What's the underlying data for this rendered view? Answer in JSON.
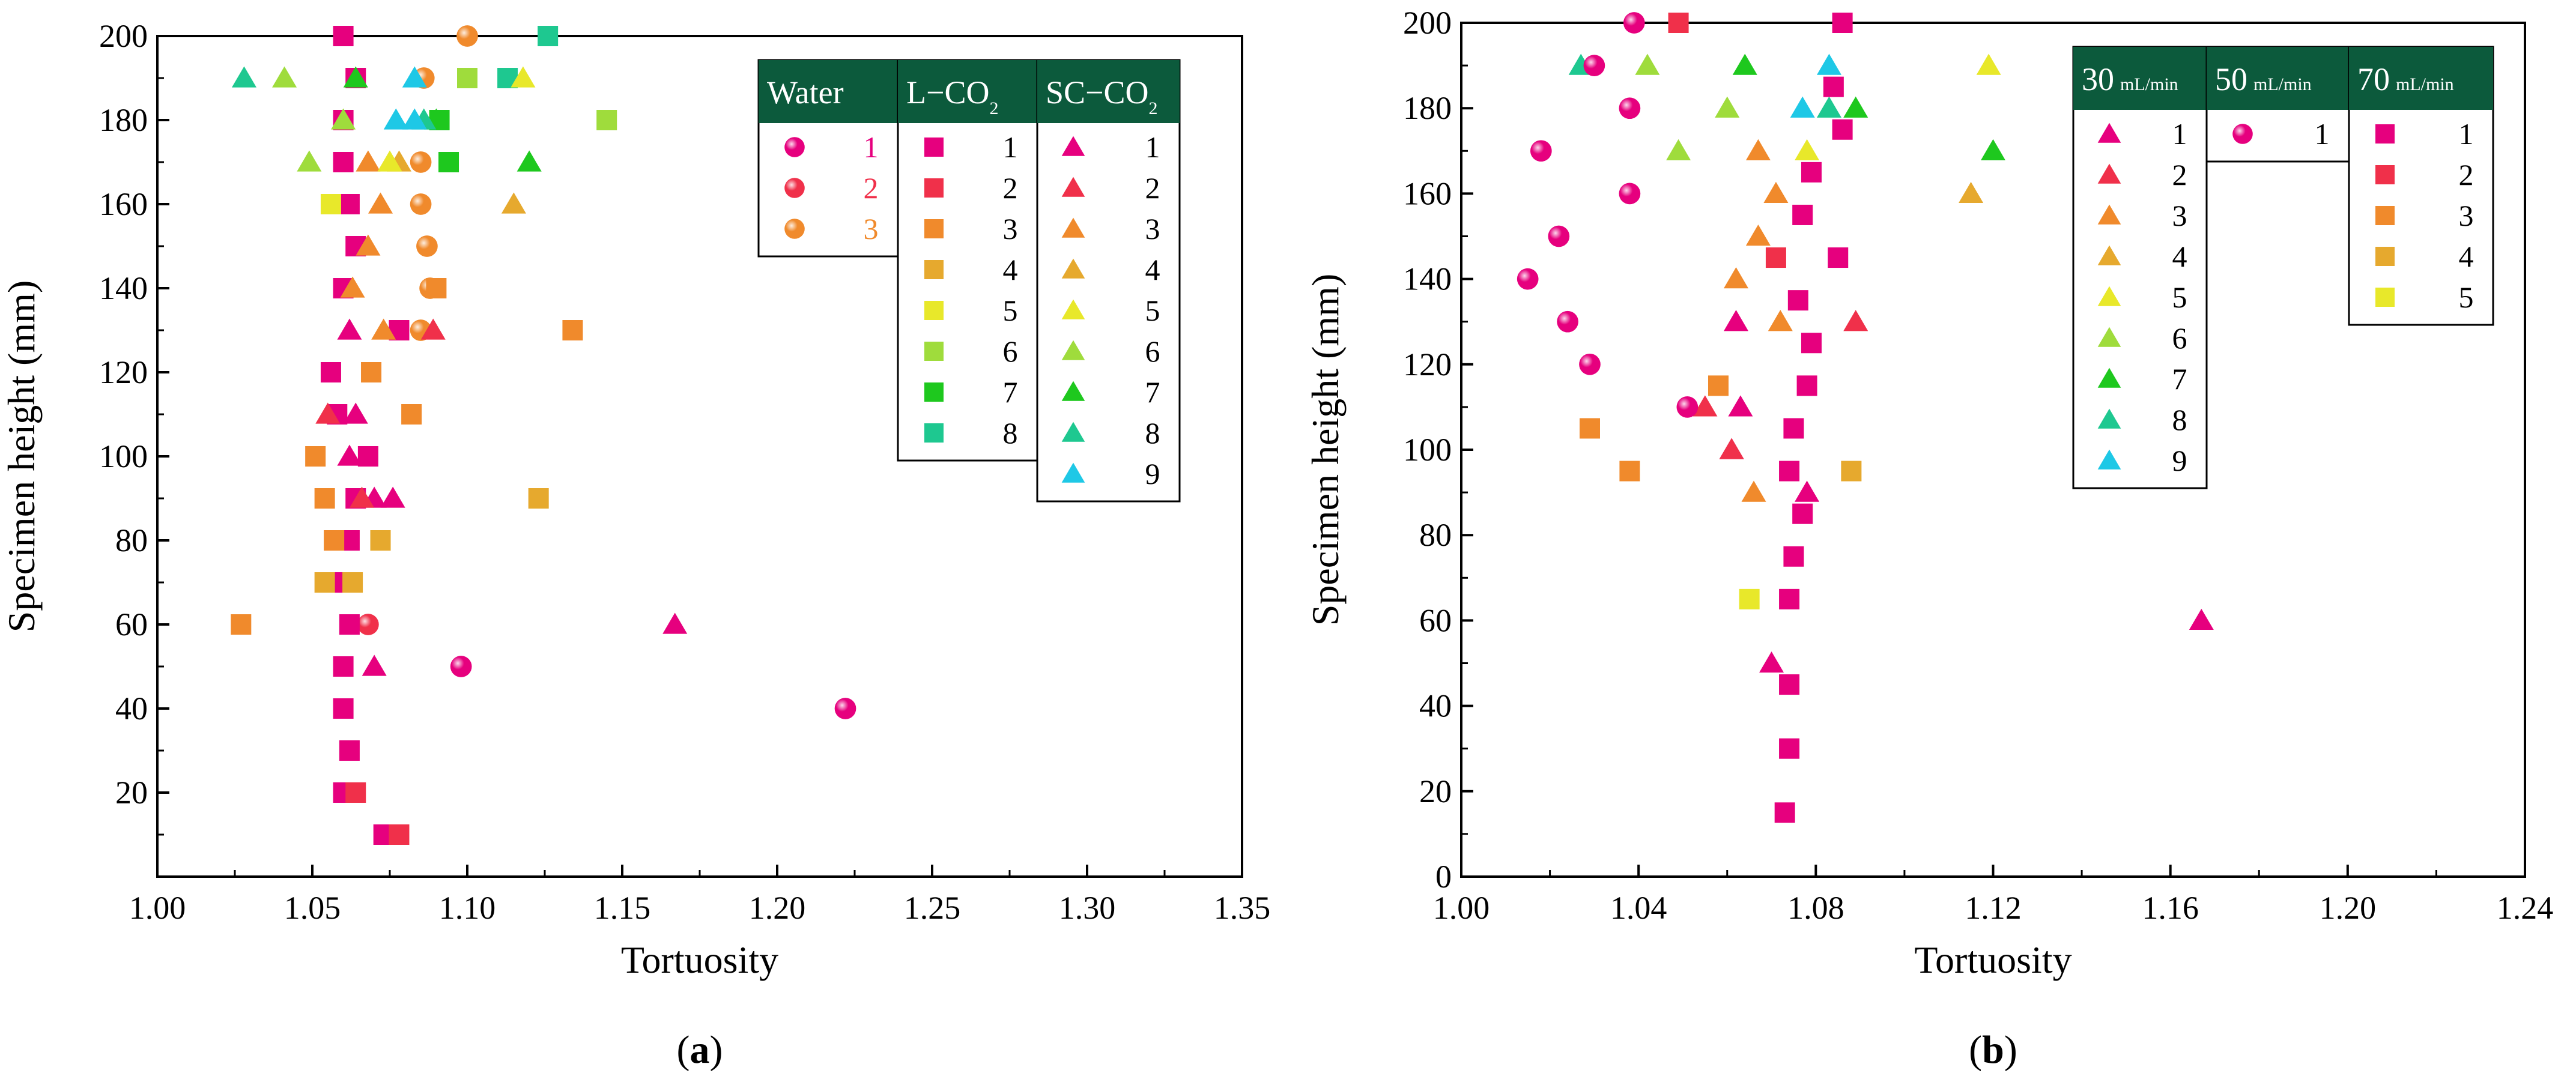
{
  "chart_data": [
    {
      "type": "scatter",
      "panel_label": "a",
      "xlabel": "Tortuosity",
      "ylabel": "Specimen height (mm)",
      "xlim": [
        1.0,
        1.35
      ],
      "ylim": [
        0,
        200
      ],
      "xticks": [
        "1.00",
        "1.05",
        "1.10",
        "1.15",
        "1.20",
        "1.25",
        "1.30",
        "1.35"
      ],
      "yticks": [
        "20",
        "40",
        "60",
        "80",
        "100",
        "120",
        "140",
        "160",
        "180",
        "200"
      ],
      "grid": false,
      "legend_position": "top-right",
      "legend_groups": [
        {
          "header": "Water",
          "header_sub": "",
          "marker": "circle",
          "entries": [
            "1",
            "2",
            "3"
          ],
          "label_colored": true
        },
        {
          "header": "L−CO",
          "header_sub": "2",
          "marker": "square",
          "entries": [
            "1",
            "2",
            "3",
            "4",
            "5",
            "6",
            "7",
            "8"
          ],
          "label_colored": false
        },
        {
          "header": "SC−CO",
          "header_sub": "2",
          "marker": "triangle",
          "entries": [
            "1",
            "2",
            "3",
            "4",
            "5",
            "6",
            "7",
            "8",
            "9"
          ],
          "label_colored": false
        }
      ],
      "series": [
        {
          "group": "Water",
          "entry": 1,
          "marker": "circle",
          "color": "#e6007e",
          "points": [
            [
              1.222,
              40
            ],
            [
              1.098,
              50
            ]
          ]
        },
        {
          "group": "Water",
          "entry": 2,
          "marker": "circle",
          "color": "#f0304a",
          "points": [
            [
              1.068,
              60
            ]
          ]
        },
        {
          "group": "Water",
          "entry": 3,
          "marker": "circle",
          "color": "#f08a2c",
          "points": [
            [
              1.085,
              130
            ],
            [
              1.088,
              140
            ],
            [
              1.087,
              150
            ],
            [
              1.085,
              160
            ],
            [
              1.085,
              170
            ],
            [
              1.086,
              190
            ],
            [
              1.1,
              200
            ]
          ]
        },
        {
          "group": "L−CO2",
          "entry": 1,
          "marker": "square",
          "color": "#e6007e",
          "points": [
            [
              1.073,
              10
            ],
            [
              1.06,
              20
            ],
            [
              1.062,
              30
            ],
            [
              1.06,
              40
            ],
            [
              1.06,
              50
            ],
            [
              1.062,
              60
            ],
            [
              1.06,
              70
            ],
            [
              1.062,
              80
            ],
            [
              1.064,
              90
            ],
            [
              1.068,
              100
            ],
            [
              1.058,
              110
            ],
            [
              1.056,
              120
            ],
            [
              1.078,
              130
            ],
            [
              1.06,
              140
            ],
            [
              1.064,
              150
            ],
            [
              1.062,
              160
            ],
            [
              1.06,
              170
            ],
            [
              1.06,
              180
            ],
            [
              1.064,
              190
            ],
            [
              1.06,
              200
            ]
          ]
        },
        {
          "group": "L−CO2",
          "entry": 2,
          "marker": "square",
          "color": "#f0304a",
          "points": [
            [
              1.078,
              10
            ],
            [
              1.064,
              20
            ]
          ]
        },
        {
          "group": "L−CO2",
          "entry": 3,
          "marker": "square",
          "color": "#f08a2c",
          "points": [
            [
              1.027,
              60
            ],
            [
              1.057,
              80
            ],
            [
              1.054,
              90
            ],
            [
              1.051,
              100
            ],
            [
              1.082,
              110
            ],
            [
              1.069,
              120
            ],
            [
              1.134,
              130
            ],
            [
              1.09,
              140
            ]
          ]
        },
        {
          "group": "L−CO2",
          "entry": 4,
          "marker": "square",
          "color": "#e6a92e",
          "points": [
            [
              1.054,
              70
            ],
            [
              1.063,
              70
            ],
            [
              1.072,
              80
            ],
            [
              1.123,
              90
            ]
          ]
        },
        {
          "group": "L−CO2",
          "entry": 5,
          "marker": "square",
          "color": "#e8e82a",
          "points": [
            [
              1.056,
              160
            ]
          ]
        },
        {
          "group": "L−CO2",
          "entry": 6,
          "marker": "square",
          "color": "#9fdc3c",
          "points": [
            [
              1.145,
              180
            ],
            [
              1.1,
              190
            ]
          ]
        },
        {
          "group": "L−CO2",
          "entry": 7,
          "marker": "square",
          "color": "#1ec81e",
          "points": [
            [
              1.094,
              170
            ],
            [
              1.091,
              180
            ]
          ]
        },
        {
          "group": "L−CO2",
          "entry": 8,
          "marker": "square",
          "color": "#1ec890",
          "points": [
            [
              1.113,
              190
            ],
            [
              1.126,
              200
            ]
          ]
        },
        {
          "group": "SC−CO2",
          "entry": 1,
          "marker": "triangle",
          "color": "#e6007e",
          "points": [
            [
              1.07,
              50
            ],
            [
              1.167,
              60
            ],
            [
              1.076,
              90
            ],
            [
              1.07,
              90
            ],
            [
              1.062,
              100
            ],
            [
              1.064,
              110
            ],
            [
              1.062,
              130
            ]
          ]
        },
        {
          "group": "SC−CO2",
          "entry": 2,
          "marker": "triangle",
          "color": "#f0304a",
          "points": [
            [
              1.066,
              90
            ],
            [
              1.055,
              110
            ],
            [
              1.089,
              130
            ]
          ]
        },
        {
          "group": "SC−CO2",
          "entry": 3,
          "marker": "triangle",
          "color": "#f08a2c",
          "points": [
            [
              1.063,
              140
            ],
            [
              1.068,
              150
            ],
            [
              1.072,
              160
            ],
            [
              1.068,
              170
            ],
            [
              1.073,
              130
            ]
          ]
        },
        {
          "group": "SC−CO2",
          "entry": 4,
          "marker": "triangle",
          "color": "#e6a92e",
          "points": [
            [
              1.115,
              160
            ],
            [
              1.078,
              170
            ]
          ]
        },
        {
          "group": "SC−CO2",
          "entry": 5,
          "marker": "triangle",
          "color": "#e8e82a",
          "points": [
            [
              1.075,
              170
            ],
            [
              1.118,
              190
            ]
          ]
        },
        {
          "group": "SC−CO2",
          "entry": 6,
          "marker": "triangle",
          "color": "#9fdc3c",
          "points": [
            [
              1.049,
              170
            ],
            [
              1.06,
              180
            ],
            [
              1.041,
              190
            ]
          ]
        },
        {
          "group": "SC−CO2",
          "entry": 7,
          "marker": "triangle",
          "color": "#1ec81e",
          "points": [
            [
              1.064,
              190
            ],
            [
              1.09,
              180
            ],
            [
              1.12,
              170
            ]
          ]
        },
        {
          "group": "SC−CO2",
          "entry": 8,
          "marker": "triangle",
          "color": "#1ec890",
          "points": [
            [
              1.028,
              190
            ],
            [
              1.086,
              180
            ]
          ]
        },
        {
          "group": "SC−CO2",
          "entry": 9,
          "marker": "triangle",
          "color": "#1ec8e6",
          "points": [
            [
              1.077,
              180
            ],
            [
              1.083,
              180
            ],
            [
              1.083,
              190
            ]
          ]
        }
      ]
    },
    {
      "type": "scatter",
      "panel_label": "b",
      "xlabel": "Tortuosity",
      "ylabel": "Specimen height (mm)",
      "xlim": [
        1.0,
        1.24
      ],
      "ylim": [
        0,
        200
      ],
      "xticks": [
        "1.00",
        "1.04",
        "1.08",
        "1.12",
        "1.16",
        "1.20",
        "1.24"
      ],
      "yticks": [
        "0",
        "20",
        "40",
        "60",
        "80",
        "100",
        "120",
        "140",
        "160",
        "180",
        "200"
      ],
      "grid": false,
      "legend_position": "top-right",
      "legend_groups": [
        {
          "header": "30",
          "header_sub": "mL/min",
          "marker": "triangle",
          "entries": [
            "1",
            "2",
            "3",
            "4",
            "5",
            "6",
            "7",
            "8",
            "9"
          ],
          "label_colored": false
        },
        {
          "header": "50",
          "header_sub": "mL/min",
          "marker": "circle",
          "entries": [
            "1"
          ],
          "label_colored": false
        },
        {
          "header": "70",
          "header_sub": "mL/min",
          "marker": "square",
          "entries": [
            "1",
            "2",
            "3",
            "4",
            "5"
          ],
          "label_colored": false
        }
      ],
      "series": [
        {
          "group": "30 mL/min",
          "entry": 1,
          "marker": "triangle",
          "color": "#e6007e",
          "points": [
            [
              1.07,
              50
            ],
            [
              1.167,
              60
            ],
            [
              1.061,
              100
            ],
            [
              1.063,
              110
            ],
            [
              1.062,
              130
            ],
            [
              1.078,
              90
            ]
          ]
        },
        {
          "group": "30 mL/min",
          "entry": 2,
          "marker": "triangle",
          "color": "#f0304a",
          "points": [
            [
              1.055,
              110
            ],
            [
              1.061,
              100
            ],
            [
              1.089,
              130
            ]
          ]
        },
        {
          "group": "30 mL/min",
          "entry": 3,
          "marker": "triangle",
          "color": "#f08a2c",
          "points": [
            [
              1.066,
              90
            ],
            [
              1.062,
              140
            ],
            [
              1.067,
              150
            ],
            [
              1.071,
              160
            ],
            [
              1.067,
              170
            ],
            [
              1.072,
              130
            ]
          ]
        },
        {
          "group": "30 mL/min",
          "entry": 4,
          "marker": "triangle",
          "color": "#e6a92e",
          "points": [
            [
              1.115,
              160
            ]
          ]
        },
        {
          "group": "30 mL/min",
          "entry": 5,
          "marker": "triangle",
          "color": "#e8e82a",
          "points": [
            [
              1.078,
              170
            ],
            [
              1.119,
              190
            ]
          ]
        },
        {
          "group": "30 mL/min",
          "entry": 6,
          "marker": "triangle",
          "color": "#9fdc3c",
          "points": [
            [
              1.049,
              170
            ],
            [
              1.06,
              180
            ],
            [
              1.042,
              190
            ]
          ]
        },
        {
          "group": "30 mL/min",
          "entry": 7,
          "marker": "triangle",
          "color": "#1ec81e",
          "points": [
            [
              1.064,
              190
            ],
            [
              1.089,
              180
            ],
            [
              1.12,
              170
            ]
          ]
        },
        {
          "group": "30 mL/min",
          "entry": 8,
          "marker": "triangle",
          "color": "#1ec890",
          "points": [
            [
              1.027,
              190
            ],
            [
              1.083,
              180
            ]
          ]
        },
        {
          "group": "30 mL/min",
          "entry": 9,
          "marker": "triangle",
          "color": "#1ec8e6",
          "points": [
            [
              1.077,
              180
            ],
            [
              1.083,
              190
            ]
          ]
        },
        {
          "group": "50 mL/min",
          "entry": 1,
          "marker": "circle",
          "color": "#e6007e",
          "points": [
            [
              1.015,
              140
            ],
            [
              1.018,
              170
            ],
            [
              1.022,
              150
            ],
            [
              1.024,
              130
            ],
            [
              1.029,
              120
            ],
            [
              1.03,
              190
            ],
            [
              1.038,
              160
            ],
            [
              1.038,
              180
            ],
            [
              1.039,
              200
            ],
            [
              1.051,
              110
            ]
          ]
        },
        {
          "group": "70 mL/min",
          "entry": 1,
          "marker": "square",
          "color": "#e6007e",
          "points": [
            [
              1.073,
              15
            ],
            [
              1.074,
              30
            ],
            [
              1.074,
              45
            ],
            [
              1.074,
              65
            ],
            [
              1.075,
              75
            ],
            [
              1.077,
              85
            ],
            [
              1.074,
              95
            ],
            [
              1.075,
              105
            ],
            [
              1.078,
              115
            ],
            [
              1.079,
              125
            ],
            [
              1.076,
              135
            ],
            [
              1.085,
              145
            ],
            [
              1.077,
              155
            ],
            [
              1.079,
              165
            ],
            [
              1.086,
              175
            ],
            [
              1.084,
              185
            ],
            [
              1.086,
              200
            ]
          ]
        },
        {
          "group": "70 mL/min",
          "entry": 2,
          "marker": "square",
          "color": "#f0304a",
          "points": [
            [
              1.049,
              200
            ],
            [
              1.071,
              145
            ]
          ]
        },
        {
          "group": "70 mL/min",
          "entry": 3,
          "marker": "square",
          "color": "#f08a2c",
          "points": [
            [
              1.029,
              105
            ],
            [
              1.038,
              95
            ],
            [
              1.058,
              115
            ]
          ]
        },
        {
          "group": "70 mL/min",
          "entry": 4,
          "marker": "square",
          "color": "#e6a92e",
          "points": [
            [
              1.088,
              95
            ]
          ]
        },
        {
          "group": "70 mL/min",
          "entry": 5,
          "marker": "square",
          "color": "#e8e82a",
          "points": [
            [
              1.065,
              65
            ]
          ]
        }
      ]
    }
  ],
  "legend_header_color": "#0c5a3c"
}
